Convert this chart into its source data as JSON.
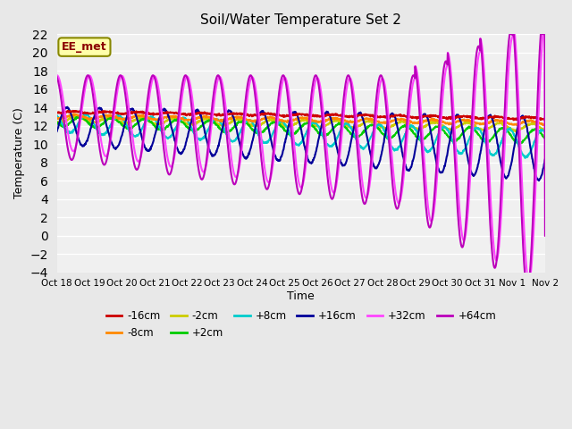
{
  "title": "Soil/Water Temperature Set 2",
  "xlabel": "Time",
  "ylabel": "Temperature (C)",
  "ylim": [
    -4,
    22
  ],
  "yticks": [
    -4,
    -2,
    0,
    2,
    4,
    6,
    8,
    10,
    12,
    14,
    16,
    18,
    20,
    22
  ],
  "x_labels": [
    "Oct 18",
    "Oct 19",
    "Oct 20",
    "Oct 21",
    "Oct 22",
    "Oct 23",
    "Oct 24",
    "Oct 25",
    "Oct 26",
    "Oct 27",
    "Oct 28",
    "Oct 29",
    "Oct 30",
    "Oct 31",
    "Nov 1",
    "Nov 2"
  ],
  "legend_entries": [
    "-16cm",
    "-8cm",
    "-2cm",
    "+2cm",
    "+8cm",
    "+16cm",
    "+32cm",
    "+64cm"
  ],
  "legend_colors": [
    "#cc0000",
    "#ff8800",
    "#cccc00",
    "#00cc00",
    "#00cccc",
    "#000099",
    "#ff44ff",
    "#bb00bb"
  ],
  "annotation_text": "EE_met",
  "annotation_bg": "#ffffaa",
  "annotation_border": "#888800",
  "n_days": 15,
  "base_temps": [
    13.5,
    13.0,
    12.7,
    12.5,
    12.3,
    12.0,
    12.0,
    12.0
  ],
  "end_temps": [
    12.8,
    12.3,
    11.8,
    10.8,
    10.0,
    9.5,
    9.5,
    9.5
  ],
  "amplitudes_start": [
    0.1,
    0.2,
    0.3,
    0.5,
    1.0,
    2.0,
    5.5,
    6.5
  ],
  "amplitudes_end": [
    0.1,
    0.2,
    0.4,
    0.8,
    1.5,
    3.5,
    7.0,
    8.0
  ],
  "phase_shifts": [
    0,
    0.05,
    0.1,
    0.2,
    0.4,
    0.8,
    0.0,
    0.0
  ]
}
